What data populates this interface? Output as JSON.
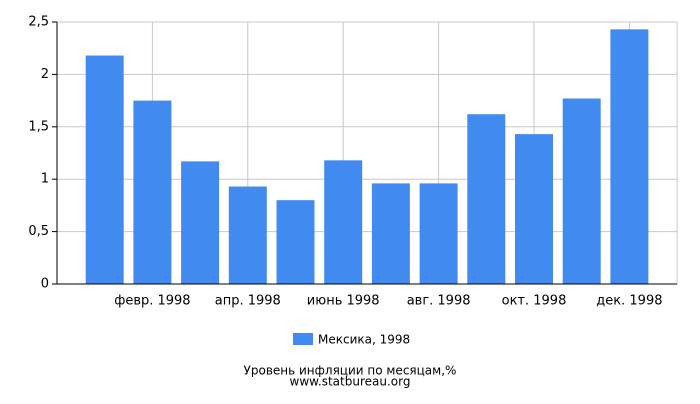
{
  "chart_data": {
    "type": "bar",
    "title": "Уровень инфляции по месяцам,%",
    "subtitle": "www.statbureau.org",
    "categories": [
      null,
      "февр. 1998",
      null,
      "апр. 1998",
      null,
      "июнь 1998",
      null,
      "авг. 1998",
      null,
      "окт. 1998",
      null,
      "дек. 1998"
    ],
    "series": [
      {
        "name": "Мексика, 1998",
        "color": "#418bf0",
        "values": [
          2.18,
          1.75,
          1.17,
          0.93,
          0.8,
          1.18,
          0.96,
          0.96,
          1.62,
          1.43,
          1.77,
          2.43
        ]
      }
    ],
    "ylim": [
      0,
      2.5
    ],
    "yticks": [
      0,
      {
        "value": 0.5,
        "label": "0,5"
      },
      1,
      {
        "value": 1.5,
        "label": "1,5"
      },
      2,
      {
        "value": 2.5,
        "label": "2,5"
      }
    ],
    "grid": true
  }
}
